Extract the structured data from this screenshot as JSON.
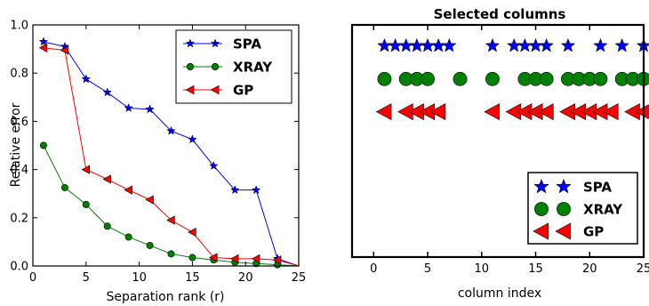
{
  "chart_data": [
    {
      "type": "line",
      "title": "",
      "xlabel": "Separation rank (r)",
      "ylabel": "Relative error",
      "xlim": [
        0,
        25
      ],
      "ylim": [
        0,
        1.0
      ],
      "xticks": [
        0,
        5,
        10,
        15,
        20,
        25
      ],
      "yticks": [
        0.0,
        0.2,
        0.4,
        0.6,
        0.8,
        1.0
      ],
      "ytick_labels": [
        "0.0",
        "0.2",
        "0.4",
        "0.6",
        "0.8",
        "1.0"
      ],
      "grid": false,
      "legend_position": "top-right",
      "x": [
        1,
        3,
        5,
        7,
        9,
        11,
        13,
        15,
        17,
        19,
        21,
        23,
        25
      ],
      "series": [
        {
          "name": "SPA",
          "color": "#0000ff",
          "marker": "star",
          "values": [
            0.93,
            0.91,
            0.775,
            0.72,
            0.655,
            0.65,
            0.56,
            0.525,
            0.415,
            0.315,
            0.315,
            0.03,
            0.0
          ]
        },
        {
          "name": "XRAY",
          "color": "#008000",
          "marker": "circle",
          "values": [
            0.5,
            0.325,
            0.255,
            0.165,
            0.12,
            0.085,
            0.05,
            0.035,
            0.025,
            0.015,
            0.01,
            0.005,
            0.0
          ]
        },
        {
          "name": "GP",
          "color": "#ff0000",
          "marker": "triangle-left",
          "values": [
            0.905,
            0.895,
            0.4,
            0.36,
            0.315,
            0.275,
            0.19,
            0.14,
            0.035,
            0.03,
            0.03,
            0.025,
            0.0
          ]
        }
      ]
    },
    {
      "type": "scatter",
      "title": "Selected columns",
      "xlabel": "column index",
      "ylabel": "",
      "xlim": [
        -2,
        25
      ],
      "xticks": [
        0,
        5,
        10,
        15,
        20,
        25
      ],
      "grid": false,
      "legend_position": "bottom-right",
      "series": [
        {
          "name": "SPA",
          "color": "#0000ff",
          "marker": "star",
          "row_y": 0.91,
          "columns": [
            1,
            2,
            3,
            4,
            5,
            6,
            7,
            11,
            13,
            14,
            15,
            16,
            18,
            21,
            23,
            25
          ]
        },
        {
          "name": "XRAY",
          "color": "#008000",
          "marker": "circle",
          "row_y": 0.767,
          "columns": [
            1,
            3,
            4,
            5,
            8,
            11,
            14,
            15,
            16,
            18,
            19,
            20,
            21,
            23,
            24,
            25
          ]
        },
        {
          "name": "GP",
          "color": "#ff0000",
          "marker": "triangle-left",
          "row_y": 0.626,
          "columns": [
            1,
            3,
            4,
            5,
            6,
            11,
            13,
            14,
            15,
            16,
            18,
            19,
            20,
            21,
            22,
            24,
            25
          ]
        }
      ]
    }
  ]
}
